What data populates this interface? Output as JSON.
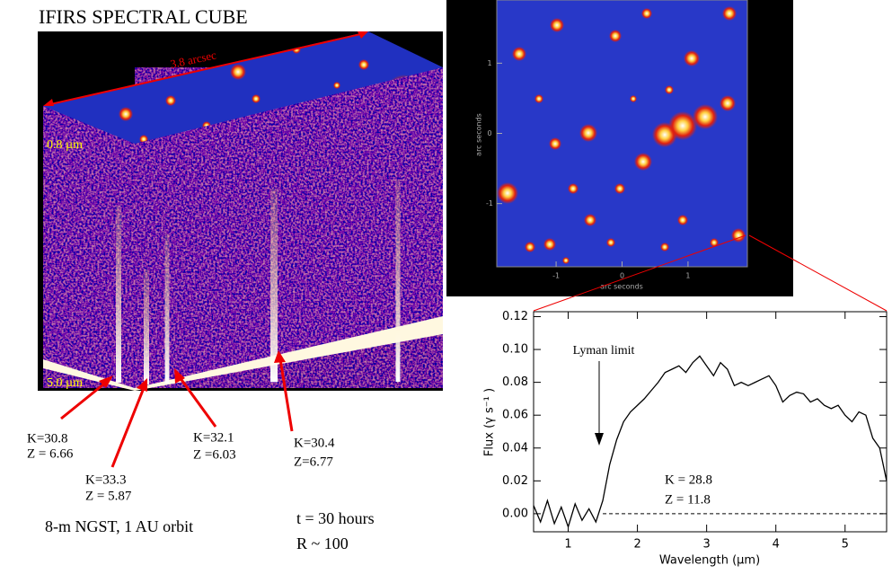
{
  "title": "IFIRS SPECTRAL CUBE",
  "cube": {
    "scale_label": "3.8 arcsec",
    "top_label": "0.8 µm",
    "bottom_label": "5.0 µm"
  },
  "sources": [
    {
      "k": "K=30.8",
      "z": "Z = 6.66"
    },
    {
      "k": "K=33.3",
      "z": "Z = 5.87"
    },
    {
      "k": "K=32.1",
      "z": "Z =6.03"
    },
    {
      "k": "K=30.4",
      "z": "Z=6.77"
    }
  ],
  "notes": {
    "telescope": "8-m NGST, 1 AU orbit",
    "time": "t = 30 hours",
    "resolution": "R ~ 100"
  },
  "sky_image": {
    "xlabel": "arc seconds",
    "ylabel": "arc seconds",
    "xlim": [
      -1.9,
      1.9
    ],
    "ylim": [
      -1.9,
      1.9
    ],
    "xticks": [
      -1,
      0,
      1
    ],
    "yticks": [
      -1,
      0,
      1
    ]
  },
  "chart_data": {
    "type": "line",
    "xlabel": "Wavelength (µm)",
    "ylabel": "Flux (γ s⁻¹ )",
    "annotations": [
      "Lyman limit",
      "K = 28.8",
      "Z = 11.8"
    ],
    "x": [
      0.5,
      0.6,
      0.7,
      0.8,
      0.9,
      1.0,
      1.1,
      1.2,
      1.3,
      1.4,
      1.5,
      1.6,
      1.7,
      1.8,
      1.9,
      2.0,
      2.1,
      2.2,
      2.3,
      2.4,
      2.5,
      2.6,
      2.7,
      2.8,
      2.9,
      3.0,
      3.1,
      3.2,
      3.3,
      3.4,
      3.5,
      3.6,
      3.7,
      3.8,
      3.9,
      4.0,
      4.1,
      4.2,
      4.3,
      4.4,
      4.5,
      4.6,
      4.7,
      4.8,
      4.9,
      5.0,
      5.1,
      5.2,
      5.3,
      5.4,
      5.5,
      5.6
    ],
    "series": [
      {
        "color": "#000000",
        "values": [
          0.005,
          -0.005,
          0.008,
          -0.006,
          0.004,
          -0.008,
          0.006,
          -0.004,
          0.003,
          -0.005,
          0.008,
          0.03,
          0.045,
          0.056,
          0.062,
          0.066,
          0.07,
          0.075,
          0.08,
          0.086,
          0.088,
          0.09,
          0.086,
          0.092,
          0.096,
          0.09,
          0.084,
          0.092,
          0.088,
          0.078,
          0.08,
          0.078,
          0.08,
          0.082,
          0.084,
          0.078,
          0.068,
          0.072,
          0.074,
          0.073,
          0.068,
          0.07,
          0.066,
          0.064,
          0.066,
          0.06,
          0.056,
          0.062,
          0.06,
          0.046,
          0.04,
          0.02
        ]
      }
    ],
    "zero_line": 0,
    "xlim": [
      0.5,
      5.6
    ],
    "ylim": [
      -0.011,
      0.123
    ],
    "xticks": [
      1,
      2,
      3,
      4,
      5
    ],
    "yticks": [
      {
        "value": 0,
        "label": "0.00"
      },
      0.02,
      0.04,
      0.06,
      0.08,
      {
        "value": 0.1,
        "label": "0.10"
      },
      0.12
    ]
  }
}
